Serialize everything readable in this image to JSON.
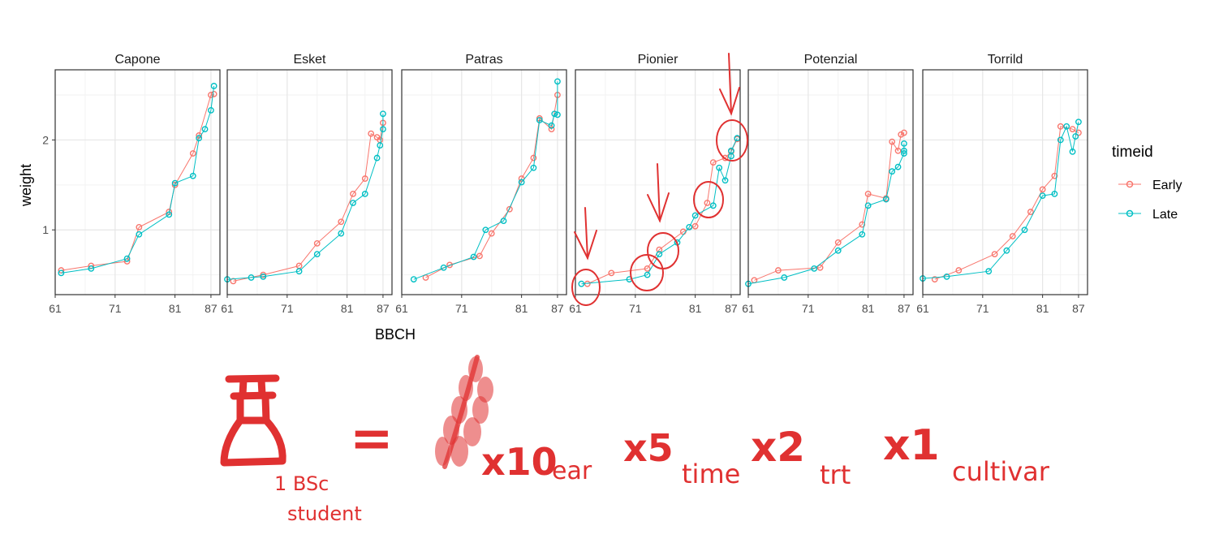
{
  "chart_data": {
    "type": "line",
    "facet_by": "cultivar",
    "ylabel": "weight",
    "xlabel": "BBCH",
    "x_ticks": [
      61,
      71,
      81,
      87
    ],
    "y_ticks": [
      1,
      2
    ],
    "xlim": [
      61,
      88.5
    ],
    "ylim": [
      0.28,
      2.78
    ],
    "grid": true,
    "legend": {
      "title": "timeid",
      "position": "right",
      "entries": [
        {
          "name": "Early",
          "color": "#F8766D"
        },
        {
          "name": "Late",
          "color": "#00BFC4"
        }
      ]
    },
    "panels": [
      {
        "title": "Capone",
        "series": [
          {
            "name": "Early",
            "x": [
              62,
              67,
              73,
              75,
              80,
              81,
              84,
              85,
              87,
              87.5
            ],
            "y": [
              0.55,
              0.6,
              0.65,
              1.03,
              1.2,
              1.5,
              1.85,
              2.05,
              2.5,
              2.51
            ]
          },
          {
            "name": "Late",
            "x": [
              62,
              67,
              73,
              75,
              80,
              81,
              84,
              85,
              86,
              87,
              87.5
            ],
            "y": [
              0.52,
              0.57,
              0.68,
              0.95,
              1.17,
              1.52,
              1.6,
              2.02,
              2.12,
              2.33,
              2.6
            ]
          }
        ]
      },
      {
        "title": "Esket",
        "series": [
          {
            "name": "Early",
            "x": [
              62,
              67,
              73,
              76,
              80,
              82,
              84,
              85,
              86,
              86.5,
              87
            ],
            "y": [
              0.43,
              0.5,
              0.6,
              0.85,
              1.09,
              1.4,
              1.57,
              2.07,
              2.03,
              2.0,
              2.19
            ]
          },
          {
            "name": "Late",
            "x": [
              61,
              65,
              67,
              73,
              76,
              80,
              82,
              84,
              86,
              86.5,
              87,
              87
            ],
            "y": [
              0.45,
              0.47,
              0.48,
              0.54,
              0.73,
              0.96,
              1.3,
              1.4,
              1.8,
              1.94,
              2.12,
              2.29
            ]
          }
        ]
      },
      {
        "title": "Patras",
        "series": [
          {
            "name": "Early",
            "x": [
              65,
              69,
              74,
              76,
              79,
              81,
              83,
              84,
              86,
              87
            ],
            "y": [
              0.47,
              0.61,
              0.71,
              0.96,
              1.23,
              1.57,
              1.8,
              2.24,
              2.12,
              2.5
            ]
          },
          {
            "name": "Late",
            "x": [
              63,
              68,
              73,
              75,
              78,
              81,
              83,
              84,
              86,
              86.5,
              87,
              87
            ],
            "y": [
              0.45,
              0.58,
              0.7,
              1.0,
              1.1,
              1.53,
              1.69,
              2.22,
              2.16,
              2.29,
              2.28,
              2.65
            ]
          }
        ]
      },
      {
        "title": "Pionier",
        "series": [
          {
            "name": "Early",
            "x": [
              63,
              67,
              73,
              75,
              79,
              81,
              83,
              84,
              86,
              87,
              88
            ],
            "y": [
              0.4,
              0.52,
              0.57,
              0.78,
              0.98,
              1.04,
              1.3,
              1.75,
              1.8,
              1.87,
              2.01
            ]
          },
          {
            "name": "Late",
            "x": [
              62,
              70,
              73,
              75,
              78,
              80,
              81,
              84,
              85,
              86,
              87,
              87,
              88
            ],
            "y": [
              0.4,
              0.45,
              0.5,
              0.73,
              0.86,
              1.03,
              1.16,
              1.27,
              1.69,
              1.55,
              1.82,
              1.88,
              2.02
            ]
          }
        ]
      },
      {
        "title": "Potenzial",
        "series": [
          {
            "name": "Early",
            "x": [
              62,
              66,
              73,
              76,
              80,
              81,
              84,
              85,
              86,
              86.5,
              87
            ],
            "y": [
              0.44,
              0.55,
              0.58,
              0.86,
              1.06,
              1.4,
              1.35,
              1.98,
              1.88,
              2.06,
              2.08
            ]
          },
          {
            "name": "Late",
            "x": [
              61,
              67,
              72,
              76,
              80,
              81,
              84,
              85,
              86,
              87,
              87,
              87
            ],
            "y": [
              0.4,
              0.47,
              0.57,
              0.77,
              0.95,
              1.27,
              1.34,
              1.65,
              1.7,
              1.85,
              1.88,
              1.96
            ]
          }
        ]
      },
      {
        "title": "Torrild",
        "series": [
          {
            "name": "Early",
            "x": [
              63,
              67,
              73,
              76,
              79,
              81,
              83,
              84,
              86,
              87
            ],
            "y": [
              0.45,
              0.55,
              0.73,
              0.93,
              1.2,
              1.45,
              1.6,
              2.15,
              2.12,
              2.08
            ]
          },
          {
            "name": "Late",
            "x": [
              61,
              65,
              72,
              75,
              78,
              81,
              83,
              84,
              85,
              86,
              86.5,
              87
            ],
            "y": [
              0.46,
              0.48,
              0.54,
              0.77,
              1.0,
              1.38,
              1.4,
              2.0,
              2.15,
              1.87,
              2.04,
              2.2
            ]
          }
        ]
      }
    ]
  },
  "annotation": {
    "equals": "=",
    "student_label": [
      "1 BSc",
      "student"
    ],
    "terms": [
      {
        "multiplier": "x10",
        "label": "ear"
      },
      {
        "multiplier": "x5",
        "label": "time"
      },
      {
        "multiplier": "x2",
        "label": "trt"
      },
      {
        "multiplier": "x1",
        "label": "cultivar"
      }
    ],
    "color": "#e03131"
  }
}
